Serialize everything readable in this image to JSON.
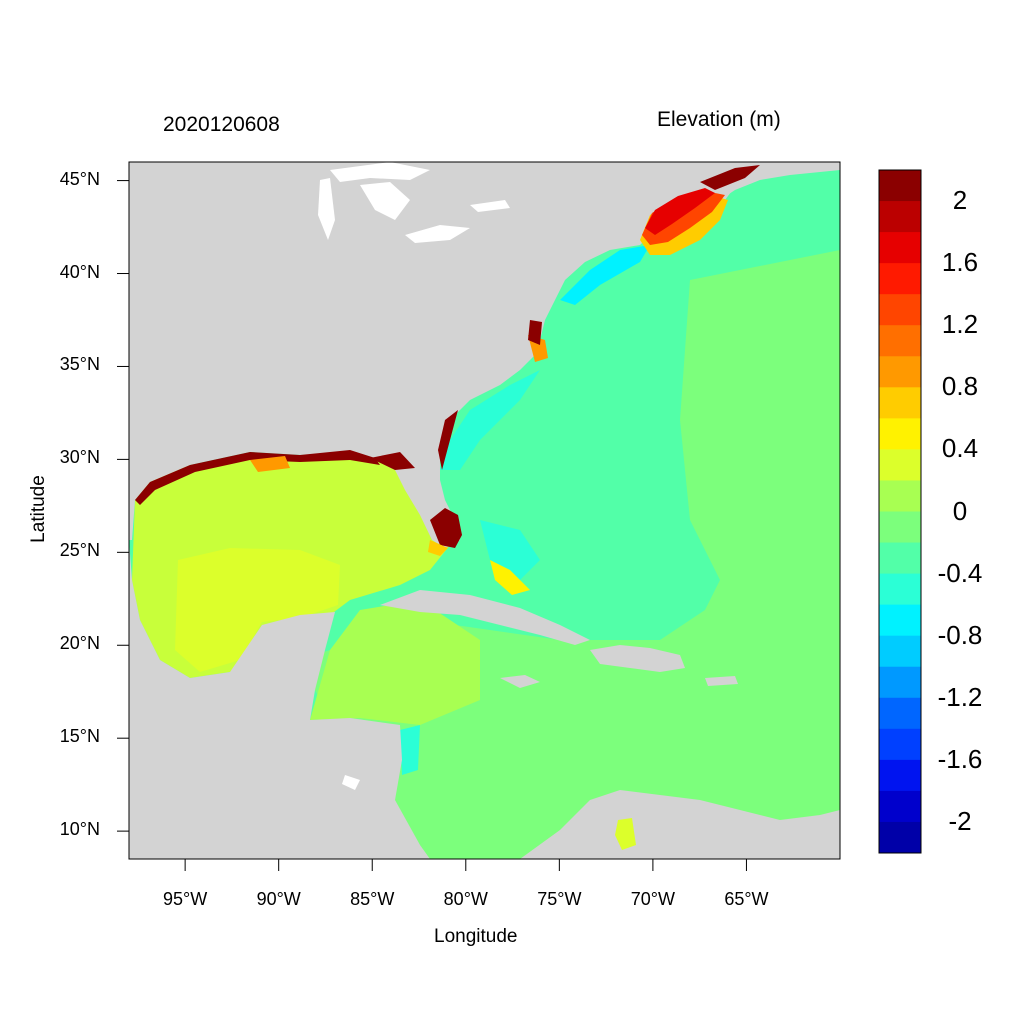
{
  "plot": {
    "date_title": "2020120608",
    "variable_title": "Elevation (m)",
    "xlabel": "Longitude",
    "ylabel": "Latitude",
    "x_ticks": [
      "95°W",
      "90°W",
      "85°W",
      "80°W",
      "75°W",
      "70°W",
      "65°W"
    ],
    "x_tick_values": [
      -95,
      -90,
      -85,
      -80,
      -75,
      -70,
      -65
    ],
    "y_ticks": [
      "45°N",
      "40°N",
      "35°N",
      "30°N",
      "25°N",
      "20°N",
      "15°N",
      "10°N"
    ],
    "y_tick_values": [
      45,
      40,
      35,
      30,
      25,
      20,
      15,
      10
    ],
    "lon_range": [
      -98,
      -60
    ],
    "lat_range": [
      8.5,
      46
    ]
  },
  "colorbar": {
    "labels": [
      "2",
      "1.6",
      "1.2",
      "0.8",
      "0.4",
      "0",
      "-0.4",
      "-0.8",
      "-1.2",
      "-1.6",
      "-2"
    ],
    "colors": [
      "#8b0000",
      "#bb0000",
      "#e60000",
      "#ff1a00",
      "#ff4500",
      "#ff6f00",
      "#ff9900",
      "#ffcc00",
      "#fff200",
      "#dcff2b",
      "#a8ff52",
      "#7cff7c",
      "#52ffa8",
      "#2bffd6",
      "#00f2ff",
      "#00ccff",
      "#0099ff",
      "#0066ff",
      "#0040ff",
      "#0014f0",
      "#0000cc",
      "#0000a8"
    ]
  },
  "colors": {
    "land": "#d3d3d3",
    "ocean_base": "#52ffa8",
    "caribbean": "#7cff7c",
    "gulf_inner": "#dcff2b",
    "gulf_mid": "#c8ff3a",
    "western_caribbean": "#a8ff52",
    "negative_nearshore": "#2bffd6",
    "negative_mid_atlantic": "#00f2ff",
    "surge_high": "#8b0000",
    "surge_red": "#e60000",
    "surge_orange": "#ff4500",
    "surge_yellow": "#ffcc00"
  }
}
